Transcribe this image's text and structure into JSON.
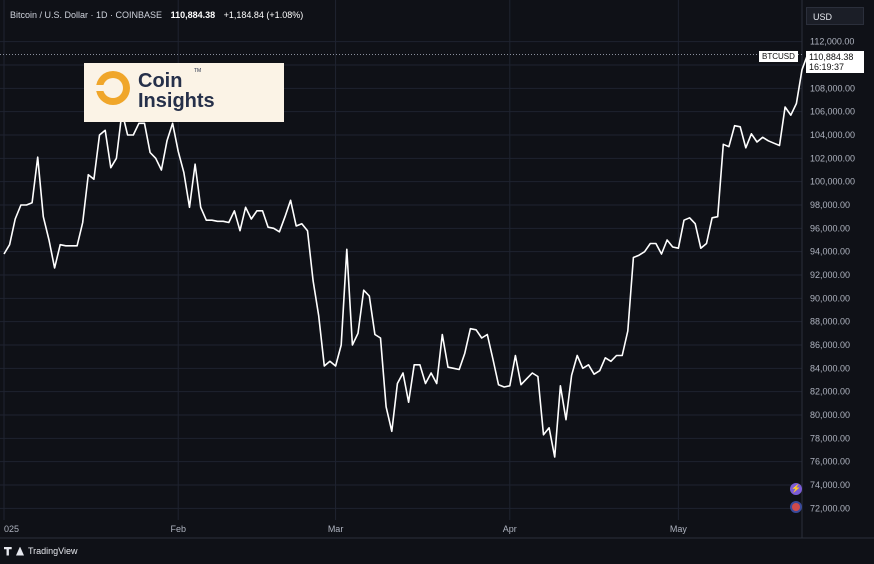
{
  "header": {
    "symbol_desc": "Bitcoin / U.S. Dollar · 1D · COINBASE",
    "price": "110,884.38",
    "change": "+1,184.84 (+1.08%)"
  },
  "currency_button": "USD",
  "price_tag": {
    "symbol": "BTCUSD",
    "price": "110,884.38",
    "countdown": "16:19:37"
  },
  "logo": {
    "line1": "Coin",
    "line2": "Insights",
    "tm": "TM"
  },
  "footer": {
    "brand": "TradingView"
  },
  "colors": {
    "background": "#0f1117",
    "line": "#ffffff",
    "grid": "#1f2330",
    "axis_text": "#aeb3bf"
  },
  "chart_data": {
    "type": "line",
    "title": "",
    "xlabel": "",
    "ylabel": "",
    "ylim": [
      71000,
      113000
    ],
    "y_ticks": [
      72000,
      74000,
      76000,
      78000,
      80000,
      82000,
      84000,
      86000,
      88000,
      90000,
      92000,
      94000,
      96000,
      98000,
      100000,
      102000,
      104000,
      106000,
      108000,
      110000,
      112000
    ],
    "x_ticks": [
      {
        "label": "025",
        "day": 0
      },
      {
        "label": "Feb",
        "day": 31
      },
      {
        "label": "Mar",
        "day": 59
      },
      {
        "label": "Apr",
        "day": 90
      },
      {
        "label": "May",
        "day": 120
      }
    ],
    "x_range": [
      0,
      142
    ],
    "series": [
      {
        "values": [
          93800,
          94600,
          96800,
          98000,
          98000,
          98200,
          102100,
          97000,
          95000,
          92600,
          94600,
          94500,
          94500,
          94500,
          96500,
          100600,
          100200,
          104000,
          104400,
          101200,
          102000,
          106000,
          104000,
          104000,
          105000,
          105000,
          102500,
          102000,
          101000,
          103500,
          105000,
          102600,
          100800,
          97800,
          101500,
          97800,
          96700,
          96700,
          96600,
          96600,
          96500,
          97500,
          95800,
          97800,
          96800,
          97500,
          97500,
          96100,
          96000,
          95700,
          97000,
          98400,
          96200,
          96400,
          95800,
          91500,
          88500,
          84200,
          84600,
          84200,
          86000,
          94200,
          86000,
          87000,
          90700,
          90200,
          86900,
          86600,
          80700,
          78600,
          82700,
          83600,
          81100,
          84300,
          84300,
          82700,
          83600,
          82700,
          86900,
          84100,
          84000,
          83900,
          85300,
          87400,
          87300,
          86600,
          86900,
          84800,
          82600,
          82400,
          82500,
          85100,
          82600,
          83100,
          83600,
          83300,
          78300,
          78900,
          76400,
          82500,
          79600,
          83400,
          85100,
          84000,
          84300,
          83500,
          83800,
          84900,
          84600,
          85100,
          85100,
          87200,
          93500,
          93700,
          94000,
          94700,
          94700,
          93800,
          95000,
          94400,
          94300,
          96700,
          96900,
          96400,
          94300,
          94700,
          96900,
          97000,
          103200,
          103000,
          104800,
          104700,
          102900,
          104100,
          103400,
          103800,
          103500,
          103300,
          103100,
          106400,
          105700,
          106700,
          109600,
          110900
        ]
      }
    ]
  }
}
